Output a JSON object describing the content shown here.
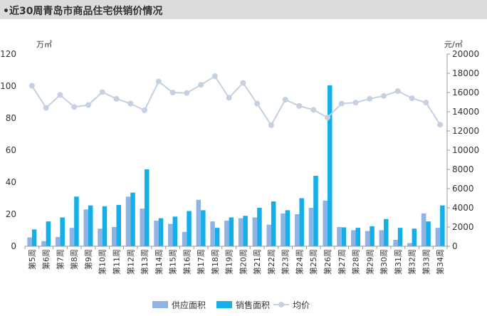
{
  "header": {
    "title": "•近30周青岛市商品住宅供销价情况"
  },
  "chart_data": {
    "type": "bar+line",
    "title": "•近30周青岛市商品住宅供销价情况",
    "left_unit": "万㎡",
    "right_unit": "元/㎡",
    "left_axis": {
      "min": 0,
      "max": 120,
      "step": 20,
      "ticks": [
        "0",
        "20",
        "40",
        "60",
        "80",
        "100",
        "120"
      ]
    },
    "right_axis": {
      "min": 0,
      "max": 20000,
      "step": 2000,
      "ticks": [
        "0",
        "2000",
        "4000",
        "6000",
        "8000",
        "10000",
        "12000",
        "14000",
        "16000",
        "18000",
        "20000"
      ]
    },
    "categories": [
      "第5周",
      "第6周",
      "第7周",
      "第8周",
      "第9周",
      "第10周",
      "第11周",
      "第12周",
      "第13周",
      "第14周",
      "第15周",
      "第16周",
      "第17周",
      "第18周",
      "第19周",
      "第20周",
      "第21周",
      "第22周",
      "第23周",
      "第24周",
      "第25周",
      "第26周",
      "第27周",
      "第28周",
      "第29周",
      "第30周",
      "第31周",
      "第32周",
      "第33周",
      "第34周"
    ],
    "series": [
      {
        "name": "供应面积",
        "type": "bar",
        "axis": "left",
        "color": "#8fb4e3",
        "values": [
          5.5,
          3.2,
          5.8,
          11.5,
          23,
          11,
          12,
          31,
          23.5,
          16,
          14,
          9,
          29,
          15.5,
          16,
          17.5,
          18,
          13.5,
          20.5,
          20,
          24,
          28.5,
          12,
          10,
          9.5,
          10,
          4,
          2,
          20.5,
          11.5
        ]
      },
      {
        "name": "销售面积",
        "type": "bar",
        "axis": "left",
        "color": "#14aee8",
        "values": [
          10.5,
          15.5,
          18,
          31,
          25.5,
          25,
          25.8,
          33.5,
          48,
          17.5,
          18.5,
          22,
          22.5,
          11.5,
          18,
          19,
          24,
          28,
          22.5,
          30,
          44,
          100.5,
          11.8,
          11.5,
          12.5,
          17,
          11.5,
          11,
          15.5,
          25.5
        ]
      },
      {
        "name": "均价",
        "type": "line",
        "axis": "right",
        "color": "#c5d0e2",
        "values": [
          16700,
          14400,
          15750,
          14500,
          14700,
          16050,
          15350,
          14850,
          14150,
          17150,
          16000,
          15950,
          16800,
          17700,
          15450,
          17000,
          14850,
          12600,
          15250,
          14600,
          14200,
          13400,
          14850,
          14950,
          15350,
          15650,
          16150,
          15400,
          14950,
          12650
        ]
      }
    ],
    "legend": {
      "position": "bottom",
      "items": [
        "供应面积",
        "销售面积",
        "均价"
      ]
    }
  }
}
